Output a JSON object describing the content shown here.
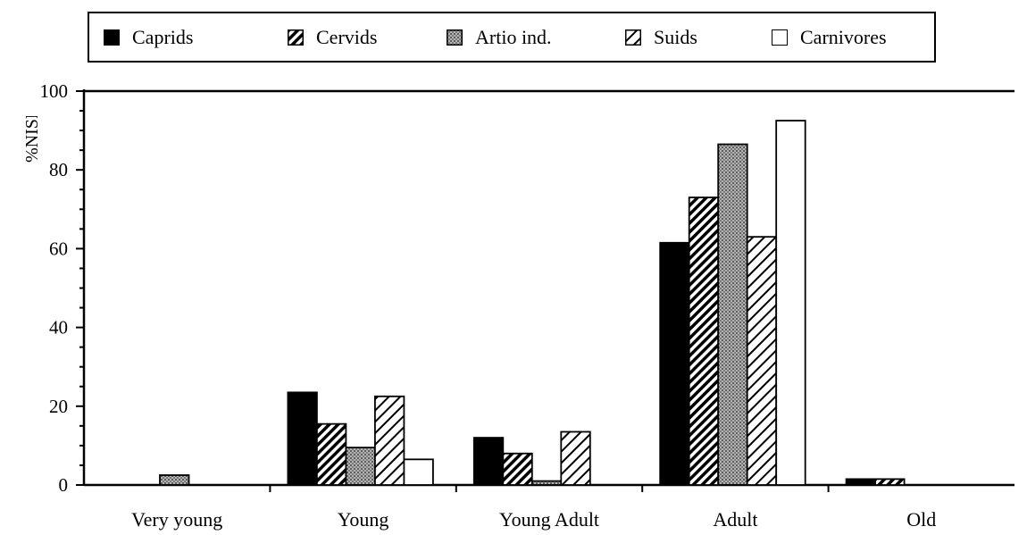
{
  "chart_data": {
    "type": "bar",
    "title": "",
    "xlabel": "",
    "ylabel": "%NISP",
    "ylim": [
      0,
      100
    ],
    "yticks": [
      0,
      20,
      40,
      60,
      80,
      100
    ],
    "grid": false,
    "legend_placement": "top",
    "categories": [
      "Very young",
      "Young",
      "Young Adult",
      "Adult",
      "Old"
    ],
    "series": [
      {
        "name": "Caprids",
        "pattern": "solid-black",
        "values": [
          0,
          23.5,
          12,
          61.5,
          1.5
        ]
      },
      {
        "name": "Cervids",
        "pattern": "dense-hatch",
        "values": [
          0,
          15.5,
          8,
          73,
          1.5
        ]
      },
      {
        "name": "Artio ind.",
        "pattern": "stipple-gray",
        "values": [
          2.5,
          9.5,
          1,
          86.5,
          0
        ]
      },
      {
        "name": "Suids",
        "pattern": "light-hatch",
        "values": [
          0,
          22.5,
          13.5,
          63,
          0
        ]
      },
      {
        "name": "Carnivores",
        "pattern": "white",
        "values": [
          0,
          6.5,
          0,
          92.5,
          0
        ]
      }
    ]
  },
  "colors": {
    "ink": "#000000",
    "stipple": "#9a9a9a",
    "paper": "#ffffff"
  }
}
